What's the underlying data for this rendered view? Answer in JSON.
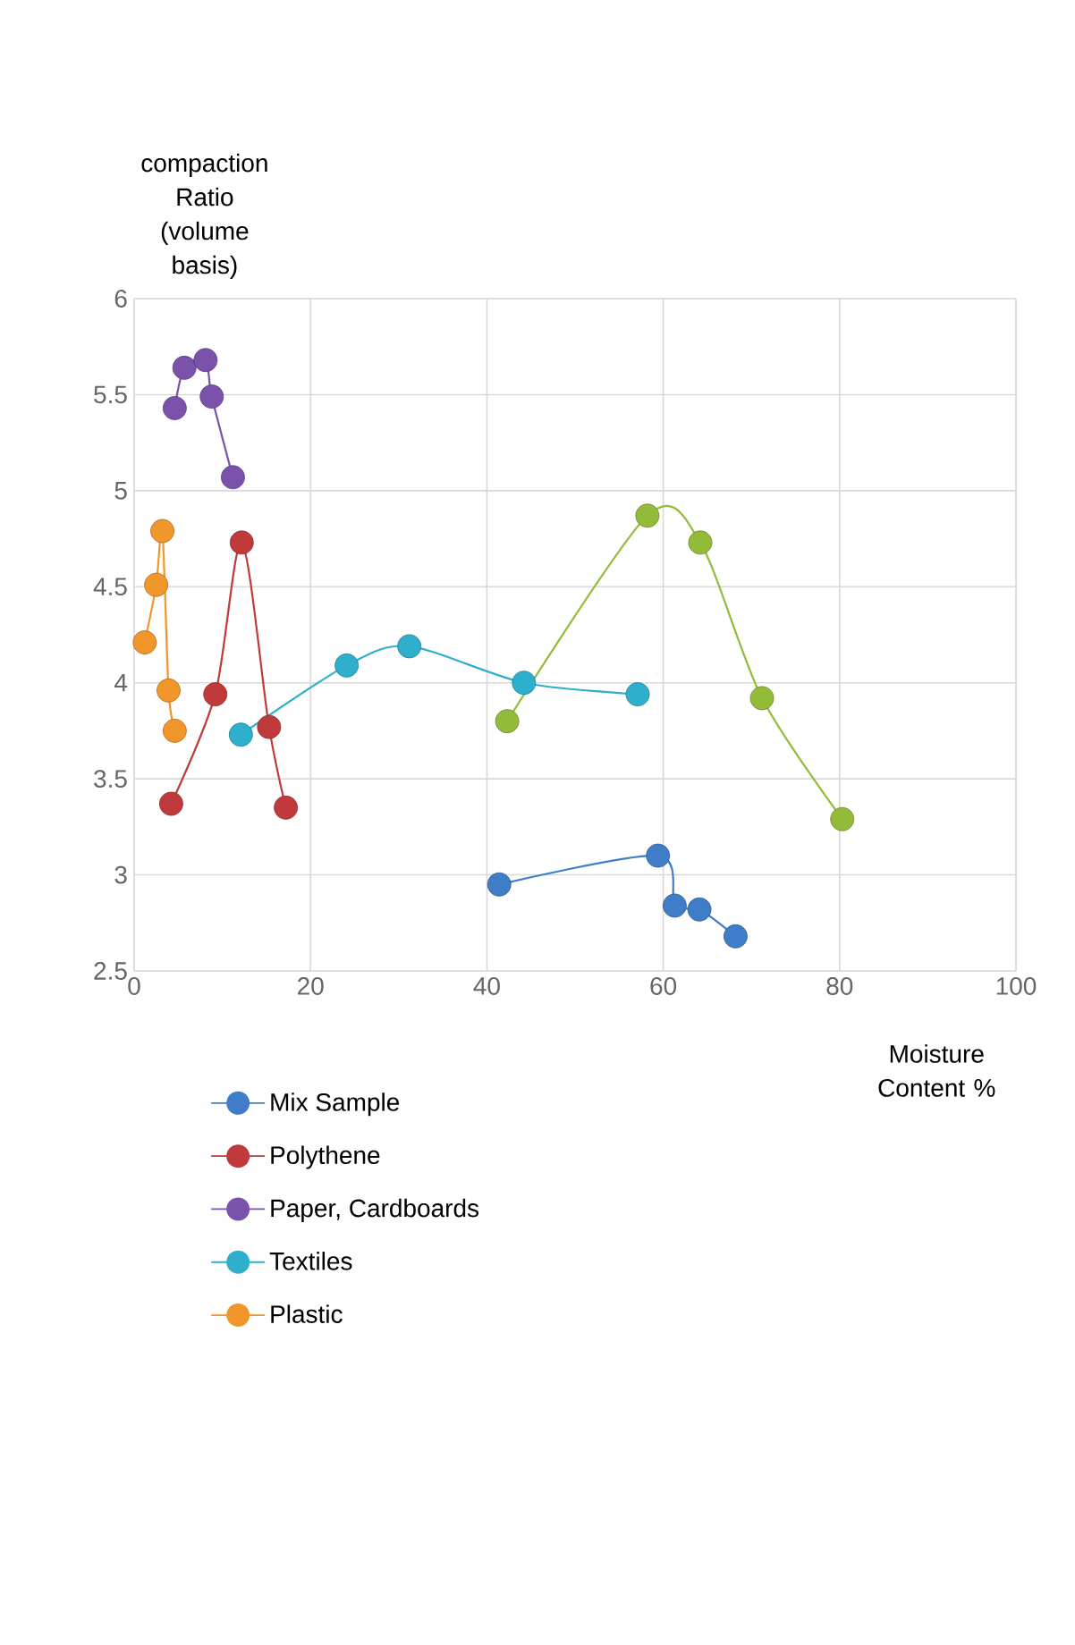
{
  "chart_data": {
    "type": "line",
    "ylabel": "compaction Ratio (volume basis)",
    "xlabel": "Moisture Content %",
    "xlim": [
      0,
      100
    ],
    "xticks": [
      0,
      20,
      40,
      60,
      80,
      100
    ],
    "ylim": [
      2.5,
      6
    ],
    "yticks": [
      2.5,
      3,
      3.5,
      4,
      4.5,
      5,
      5.5,
      6
    ],
    "grid": true,
    "legend": "bottom",
    "marker": "circle",
    "line_style": "solid",
    "series": [
      {
        "name": "Mix Sample",
        "color": "#3f7dc8",
        "x": [
          41.4,
          59.4,
          61.3,
          64.1,
          68.2
        ],
        "values": [
          2.95,
          3.1,
          2.84,
          2.82,
          2.68
        ]
      },
      {
        "name": "Polythene",
        "color": "#c0393b",
        "x": [
          4.2,
          9.2,
          12.2,
          15.3,
          17.2
        ],
        "values": [
          3.37,
          3.94,
          4.73,
          3.77,
          3.35
        ]
      },
      {
        "name": "Paper, Cardboards",
        "color": "#7b52ab",
        "x": [
          4.6,
          5.7,
          8.1,
          8.8,
          11.2
        ],
        "values": [
          5.43,
          5.64,
          5.68,
          5.49,
          5.07
        ]
      },
      {
        "name": "Textiles",
        "color": "#2eb0cc",
        "x": [
          12.1,
          24.1,
          31.2,
          44.2,
          57.1
        ],
        "values": [
          3.73,
          4.09,
          4.19,
          4.0,
          3.94
        ]
      },
      {
        "name": "Plastic",
        "color": "#f0962a",
        "x": [
          1.2,
          2.5,
          3.2,
          3.9,
          4.6
        ],
        "values": [
          4.21,
          4.51,
          4.79,
          3.96,
          3.75
        ]
      },
      {
        "color": "#93bb3a",
        "x": [
          42.3,
          58.2,
          64.2,
          71.2,
          80.3
        ],
        "values": [
          3.8,
          4.87,
          4.73,
          3.92,
          3.29
        ]
      }
    ]
  }
}
